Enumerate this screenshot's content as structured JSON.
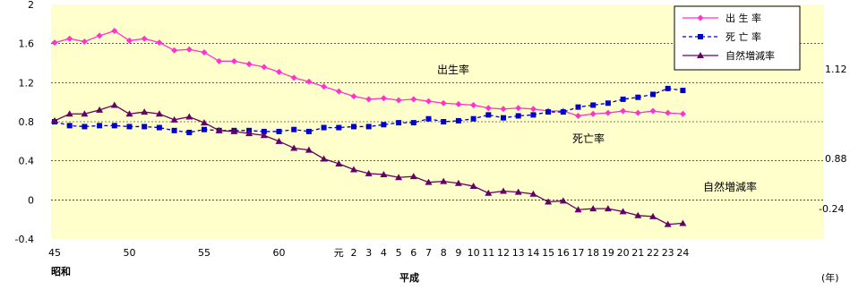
{
  "chart_data": {
    "type": "line",
    "ylim": [
      -0.4,
      2.0
    ],
    "yticks": [
      "2",
      "1.6",
      "1.2",
      "0.8",
      "0.4",
      "0",
      "-0.4"
    ],
    "grid": true,
    "legend_position": "top-right",
    "background_color": "#ffffcc",
    "x_tick_labels": [
      "45",
      "50",
      "55",
      "60",
      "元",
      "2",
      "3",
      "4",
      "5",
      "6",
      "7",
      "8",
      "9",
      "10",
      "11",
      "12",
      "13",
      "14",
      "15",
      "16",
      "17",
      "18",
      "19",
      "20",
      "21",
      "22",
      "23",
      "24"
    ],
    "era_labels": [
      "昭和",
      "平成"
    ],
    "x_unit": "(年)",
    "x": [
      "昭和45",
      "46",
      "47",
      "48",
      "49",
      "50",
      "51",
      "52",
      "53",
      "54",
      "55",
      "56",
      "57",
      "58",
      "59",
      "60",
      "61",
      "62",
      "63",
      "元",
      "2",
      "3",
      "4",
      "5",
      "6",
      "7",
      "8",
      "9",
      "10",
      "11",
      "12",
      "13",
      "14",
      "15",
      "16",
      "17",
      "18",
      "19",
      "20",
      "21",
      "22",
      "23",
      "24"
    ],
    "series": [
      {
        "name": "出 生 率",
        "color": "#ff33cc",
        "marker": "diamond",
        "line_style": "solid",
        "values": [
          1.61,
          1.65,
          1.62,
          1.68,
          1.73,
          1.63,
          1.65,
          1.61,
          1.53,
          1.54,
          1.51,
          1.42,
          1.42,
          1.39,
          1.36,
          1.31,
          1.25,
          1.21,
          1.16,
          1.11,
          1.06,
          1.03,
          1.04,
          1.02,
          1.03,
          1.01,
          0.99,
          0.98,
          0.97,
          0.94,
          0.93,
          0.94,
          0.93,
          0.91,
          0.91,
          0.86,
          0.88,
          0.89,
          0.91,
          0.89,
          0.91,
          0.89,
          0.88
        ]
      },
      {
        "name": "死 亡 率",
        "color": "#0000cc",
        "marker": "square",
        "line_style": "dashed",
        "values": [
          0.8,
          0.76,
          0.75,
          0.76,
          0.76,
          0.75,
          0.75,
          0.74,
          0.71,
          0.69,
          0.72,
          0.71,
          0.71,
          0.71,
          0.7,
          0.7,
          0.72,
          0.7,
          0.74,
          0.74,
          0.75,
          0.75,
          0.77,
          0.79,
          0.79,
          0.83,
          0.8,
          0.81,
          0.83,
          0.87,
          0.84,
          0.86,
          0.87,
          0.9,
          0.9,
          0.95,
          0.97,
          0.99,
          1.03,
          1.05,
          1.08,
          1.14,
          1.12
        ]
      },
      {
        "name": "自然増減率",
        "color": "#660066",
        "marker": "triangle",
        "line_style": "solid",
        "values": [
          0.81,
          0.88,
          0.88,
          0.92,
          0.97,
          0.88,
          0.9,
          0.88,
          0.82,
          0.85,
          0.79,
          0.71,
          0.7,
          0.68,
          0.66,
          0.6,
          0.53,
          0.51,
          0.42,
          0.37,
          0.31,
          0.27,
          0.26,
          0.23,
          0.24,
          0.18,
          0.19,
          0.17,
          0.14,
          0.07,
          0.09,
          0.08,
          0.06,
          -0.02,
          -0.01,
          -0.1,
          -0.09,
          -0.09,
          -0.12,
          -0.16,
          -0.17,
          -0.25,
          -0.24
        ]
      }
    ],
    "annotations": {
      "birth_label": "出生率",
      "death_label": "死亡率",
      "natural_label": "自然増減率",
      "end_value_top": "1.12",
      "end_value_mid": "0.88",
      "end_value_low": "-0.24"
    }
  }
}
